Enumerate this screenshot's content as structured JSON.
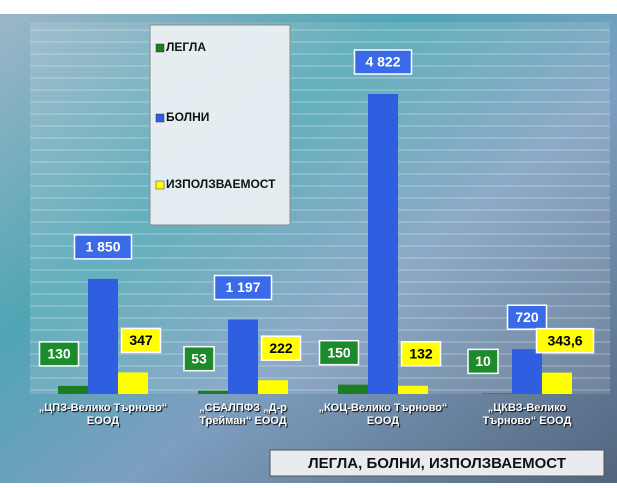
{
  "chart_data": {
    "type": "bar",
    "title": "ЛЕГЛА, БОЛНИ, ИЗПОЛЗВАЕМОСТ",
    "categories": [
      "„ЦПЗ-Велико Търново“ ЕООД",
      "„СБАЛПФЗ „Д-р Трейман“ ЕООД",
      "„КОЦ-Велико Търново“ ЕООД",
      "„ЦКВЗ-Велико Търново“ ЕООД"
    ],
    "series": [
      {
        "name": "ЛЕГЛА",
        "color": "#1d7d22",
        "values": [
          130,
          53,
          150,
          10
        ]
      },
      {
        "name": "БОЛНИ",
        "color": "#2f5fe0",
        "values": [
          1850,
          1197,
          4822,
          720
        ],
        "value_labels": [
          "1 850",
          "1 197",
          "4 822",
          "720"
        ]
      },
      {
        "name": "ИЗПОЛЗВАЕМОСТ",
        "color": "#ffff00",
        "values": [
          347,
          222,
          132,
          343.6
        ],
        "value_labels": [
          "347",
          "222",
          "132",
          "343,6"
        ]
      }
    ],
    "grid": true
  }
}
